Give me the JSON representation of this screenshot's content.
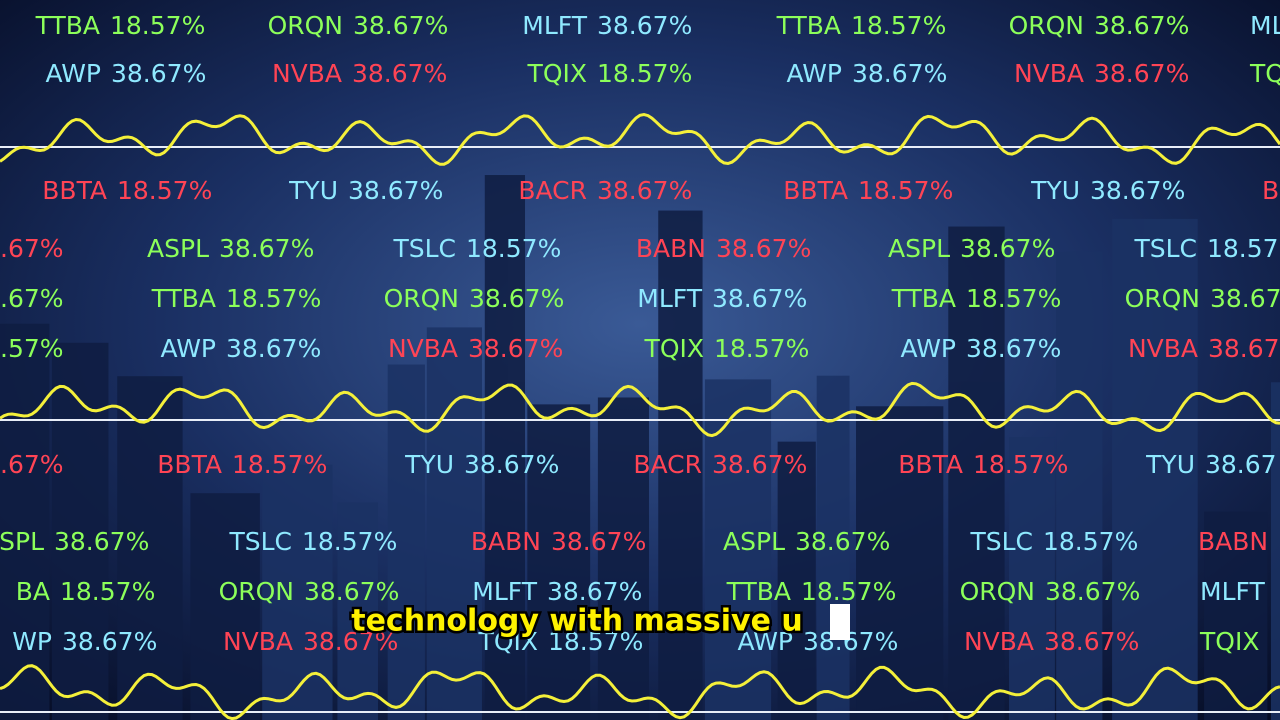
{
  "ticker": {
    "rows": [
      {
        "items": [
          {
            "symbol": "TTBA",
            "value": "18.57%",
            "color": "#8cff5a"
          },
          {
            "symbol": "ORQN",
            "value": "38.67%",
            "color": "#8cff5a"
          },
          {
            "symbol": "MLFT",
            "value": "38.67%",
            "color": "#8fe9ff"
          },
          {
            "symbol": "TTBA",
            "value": "18.57%",
            "color": "#8cff5a"
          },
          {
            "symbol": "ORQN",
            "value": "38.67%",
            "color": "#8cff5a"
          },
          {
            "symbol": "ML",
            "color": "#8fe9ff"
          }
        ]
      },
      {
        "items": [
          {
            "symbol": "AWP",
            "value": "38.67%",
            "color": "#8fe9ff"
          },
          {
            "symbol": "NVBA",
            "value": "38.67%",
            "color": "#ff4455"
          },
          {
            "symbol": "TQIX",
            "value": "18.57%",
            "color": "#8cff5a"
          },
          {
            "symbol": "AWP",
            "value": "38.67%",
            "color": "#8fe9ff"
          },
          {
            "symbol": "NVBA",
            "value": "38.67%",
            "color": "#ff4455"
          },
          {
            "symbol": "TQ",
            "color": "#8cff5a"
          }
        ]
      },
      {
        "items": [
          {
            "symbol": "BBTA",
            "value": "18.57%",
            "color": "#ff4455"
          },
          {
            "symbol": "TYU",
            "value": "38.67%",
            "color": "#8fe9ff"
          },
          {
            "symbol": "BACR",
            "value": "38.67%",
            "color": "#ff4455"
          },
          {
            "symbol": "BBTA",
            "value": "18.57%",
            "color": "#ff4455"
          },
          {
            "symbol": "TYU",
            "value": "38.67%",
            "color": "#8fe9ff"
          },
          {
            "symbol": "B",
            "color": "#ff4455"
          }
        ]
      },
      {
        "items": [
          {
            "value": ".67%",
            "color": "#ff4455"
          },
          {
            "symbol": "ASPL",
            "value": "38.67%",
            "color": "#8cff5a"
          },
          {
            "symbol": "TSLC",
            "value": "18.57%",
            "color": "#8fe9ff"
          },
          {
            "symbol": "BABN",
            "value": "38.67%",
            "color": "#ff4455"
          },
          {
            "symbol": "ASPL",
            "value": "38.67%",
            "color": "#8cff5a"
          },
          {
            "symbol": "TSLC",
            "value": "18.57",
            "color": "#8fe9ff"
          }
        ]
      },
      {
        "items": [
          {
            "value": ".67%",
            "color": "#8cff5a"
          },
          {
            "symbol": "TTBA",
            "value": "18.57%",
            "color": "#8cff5a"
          },
          {
            "symbol": "ORQN",
            "value": "38.67%",
            "color": "#8cff5a"
          },
          {
            "symbol": "MLFT",
            "value": "38.67%",
            "color": "#8fe9ff"
          },
          {
            "symbol": "TTBA",
            "value": "18.57%",
            "color": "#8cff5a"
          },
          {
            "symbol": "ORQN",
            "value": "38.67",
            "color": "#8cff5a"
          }
        ]
      },
      {
        "items": [
          {
            "value": ".57%",
            "color": "#8cff5a"
          },
          {
            "symbol": "AWP",
            "value": "38.67%",
            "color": "#8fe9ff"
          },
          {
            "symbol": "NVBA",
            "value": "38.67%",
            "color": "#ff4455"
          },
          {
            "symbol": "TQIX",
            "value": "18.57%",
            "color": "#8cff5a"
          },
          {
            "symbol": "AWP",
            "value": "38.67%",
            "color": "#8fe9ff"
          },
          {
            "symbol": "NVBA",
            "value": "38.67",
            "color": "#ff4455"
          }
        ]
      },
      {
        "items": [
          {
            "value": ".67%",
            "color": "#ff4455"
          },
          {
            "symbol": "BBTA",
            "value": "18.57%",
            "color": "#ff4455"
          },
          {
            "symbol": "TYU",
            "value": "38.67%",
            "color": "#8fe9ff"
          },
          {
            "symbol": "BACR",
            "value": "38.67%",
            "color": "#ff4455"
          },
          {
            "symbol": "BBTA",
            "value": "18.57%",
            "color": "#ff4455"
          },
          {
            "symbol": "TYU",
            "value": "38.67",
            "color": "#8fe9ff"
          }
        ]
      },
      {
        "items": [
          {
            "symbol": "SPL",
            "value": "38.67%",
            "color": "#8cff5a"
          },
          {
            "symbol": "TSLC",
            "value": "18.57%",
            "color": "#8fe9ff"
          },
          {
            "symbol": "BABN",
            "value": "38.67%",
            "color": "#ff4455"
          },
          {
            "symbol": "ASPL",
            "value": "38.67%",
            "color": "#8cff5a"
          },
          {
            "symbol": "TSLC",
            "value": "18.57%",
            "color": "#8fe9ff"
          },
          {
            "symbol": "BABN",
            "color": "#ff4455"
          }
        ]
      },
      {
        "items": [
          {
            "symbol": "BA",
            "value": "18.57%",
            "color": "#8cff5a"
          },
          {
            "symbol": "ORQN",
            "value": "38.67%",
            "color": "#8cff5a"
          },
          {
            "symbol": "MLFT",
            "value": "38.67%",
            "color": "#8fe9ff"
          },
          {
            "symbol": "TTBA",
            "value": "18.57%",
            "color": "#8cff5a"
          },
          {
            "symbol": "ORQN",
            "value": "38.67%",
            "color": "#8cff5a"
          },
          {
            "symbol": "MLFT",
            "color": "#8fe9ff"
          }
        ]
      },
      {
        "items": [
          {
            "symbol": "WP",
            "value": "38.67%",
            "color": "#8fe9ff"
          },
          {
            "symbol": "NVBA",
            "value": "38.67%",
            "color": "#ff4455"
          },
          {
            "symbol": "TQIX",
            "value": "18.57%",
            "color": "#8fe9ff"
          },
          {
            "symbol": "AWP",
            "value": "38.67%",
            "color": "#8fe9ff"
          },
          {
            "symbol": "NVBA",
            "value": "38.67%",
            "color": "#ff4455"
          },
          {
            "symbol": "TQIX",
            "color": "#8cff5a"
          }
        ]
      }
    ]
  },
  "subtitle": "technology with massive u"
}
